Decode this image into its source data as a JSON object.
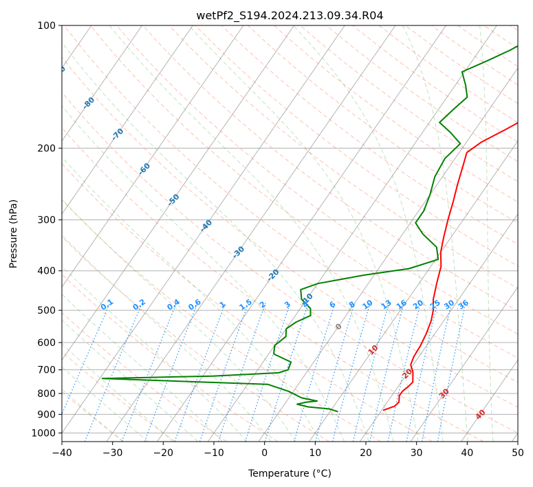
{
  "chart_data": {
    "type": "line",
    "title": "wetPf2_S194.2024.213.09.34.R04",
    "xlabel": "Temperature (°C)",
    "ylabel": "Pressure (hPa)",
    "xlim": [
      -40,
      50
    ],
    "ylim": [
      1050,
      100
    ],
    "y_scale": "log",
    "grid": true,
    "x_ticks": [
      -40,
      -30,
      -20,
      -10,
      0,
      10,
      20,
      30,
      40,
      50
    ],
    "y_ticks": [
      1000,
      900,
      800,
      700,
      600,
      500,
      400,
      300,
      200,
      100
    ],
    "series": [
      {
        "color": "#ff0000",
        "points": [
          [
            20.3,
            880
          ],
          [
            22.0,
            860
          ],
          [
            22.3,
            840
          ],
          [
            21.5,
            810
          ],
          [
            21.5,
            790
          ],
          [
            22.0,
            770
          ],
          [
            22.3,
            750
          ],
          [
            21.8,
            735
          ],
          [
            21.0,
            710
          ],
          [
            19.5,
            680
          ],
          [
            19.0,
            650
          ],
          [
            18.8,
            610
          ],
          [
            18.3,
            570
          ],
          [
            17.5,
            530
          ],
          [
            16.5,
            500
          ],
          [
            15.0,
            470
          ],
          [
            13.5,
            430
          ],
          [
            12.0,
            390
          ],
          [
            10.0,
            360
          ],
          [
            8.5,
            330
          ],
          [
            7.0,
            300
          ],
          [
            5.5,
            270
          ],
          [
            4.0,
            245
          ],
          [
            2.5,
            220
          ],
          [
            1.5,
            205
          ],
          [
            3.0,
            193
          ],
          [
            6.0,
            180
          ],
          [
            9.0,
            167
          ],
          [
            12.0,
            153
          ],
          [
            15.5,
            140
          ],
          [
            18.0,
            130
          ],
          [
            19.5,
            122
          ],
          [
            20.5,
            115
          ],
          [
            21.5,
            108
          ],
          [
            23.0,
            100
          ]
        ]
      },
      {
        "color": "#008000",
        "points": [
          [
            11.6,
            887
          ],
          [
            9.5,
            873
          ],
          [
            5.0,
            863
          ],
          [
            2.5,
            850
          ],
          [
            4.0,
            840
          ],
          [
            6.0,
            835
          ],
          [
            2.5,
            820
          ],
          [
            -1.0,
            790
          ],
          [
            -6.0,
            760
          ],
          [
            -39.5,
            735
          ],
          [
            -18.0,
            725
          ],
          [
            -5.5,
            712
          ],
          [
            -4.0,
            700
          ],
          [
            -4.5,
            670
          ],
          [
            -9.0,
            640
          ],
          [
            -10.0,
            610
          ],
          [
            -9.0,
            580
          ],
          [
            -10.0,
            555
          ],
          [
            -9.0,
            535
          ],
          [
            -7.0,
            515
          ],
          [
            -8.0,
            495
          ],
          [
            -11.0,
            470
          ],
          [
            -12.5,
            445
          ],
          [
            -10.0,
            430
          ],
          [
            -2.0,
            410
          ],
          [
            6.0,
            395
          ],
          [
            10.5,
            375
          ],
          [
            8.5,
            350
          ],
          [
            4.0,
            325
          ],
          [
            1.0,
            305
          ],
          [
            1.0,
            285
          ],
          [
            0.0,
            260
          ],
          [
            -1.5,
            235
          ],
          [
            -2.0,
            212
          ],
          [
            -1.0,
            195
          ],
          [
            -4.5,
            183
          ],
          [
            -8.0,
            173
          ],
          [
            -7.0,
            160
          ],
          [
            -6.0,
            150
          ],
          [
            -8.0,
            140
          ],
          [
            -10.5,
            130
          ],
          [
            -7.0,
            122
          ],
          [
            -4.0,
            115
          ],
          [
            -1.5,
            108
          ],
          [
            0.5,
            100
          ]
        ]
      }
    ],
    "isotherm_labels": [
      {
        "temp": -100,
        "label": "-100"
      },
      {
        "temp": -90,
        "label": "-90"
      },
      {
        "temp": -80,
        "label": "-80"
      },
      {
        "temp": -70,
        "label": "-70"
      },
      {
        "temp": -60,
        "label": "-60"
      },
      {
        "temp": -50,
        "label": "-50"
      },
      {
        "temp": -40,
        "label": "-40"
      },
      {
        "temp": -30,
        "label": "-30"
      },
      {
        "temp": -20,
        "label": "-20"
      },
      {
        "temp": -10,
        "label": "-10"
      },
      {
        "temp": 0,
        "label": "0"
      },
      {
        "temp": 10,
        "label": "10"
      },
      {
        "temp": 20,
        "label": "20"
      },
      {
        "temp": 30,
        "label": "30"
      },
      {
        "temp": 40,
        "label": "40"
      }
    ],
    "mixing_ratio_labels": [
      "0.1",
      "0.2",
      "0.4",
      "0.6",
      "1",
      "1.5",
      "2",
      "3",
      "4",
      "6",
      "8",
      "10",
      "13",
      "16",
      "20",
      "25",
      "30",
      "36"
    ],
    "colors": {
      "temperature": "#ff0000",
      "dewpoint": "#008000",
      "isotherm": "#808080",
      "dry_adiabat": "#ff8c69",
      "moist_adiabat": "#5cb85c",
      "mixing_ratio": "#1e90ff",
      "grid": "#b0b0b0",
      "label_cold": "#1f77b4",
      "label_warm": "#d62728",
      "label_zero": "#808080"
    }
  }
}
